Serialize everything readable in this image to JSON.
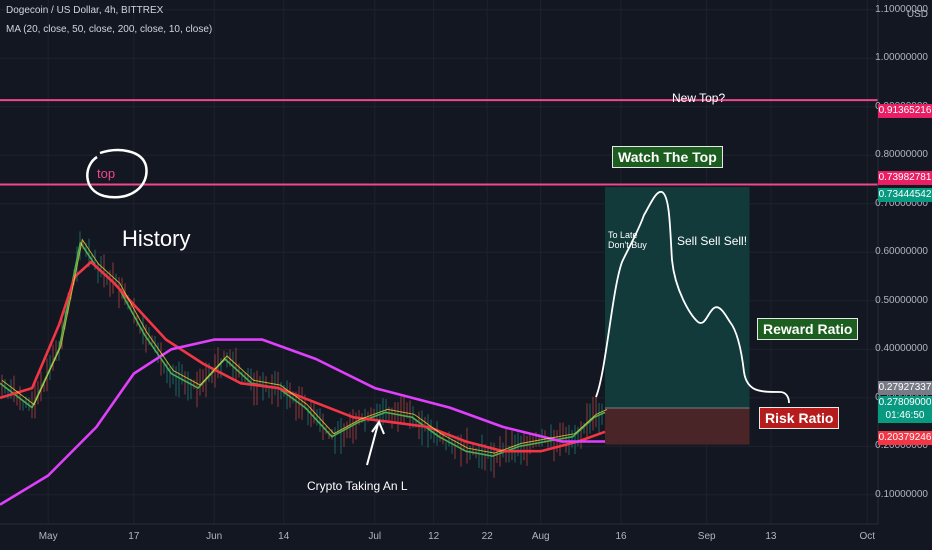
{
  "header": {
    "title": "Dogecoin / US Dollar, 4h, BITTREX",
    "ma_legend": "MA (20, close, 50, close, 200, close, 10, close)",
    "currency": "USD"
  },
  "price_axis": {
    "labels": [
      "1.10000000",
      "1.00000000",
      "0.90000000",
      "0.80000000",
      "0.70000000",
      "0.60000000",
      "0.50000000",
      "0.40000000",
      "0.30000000",
      "0.20000000",
      "0.10000000"
    ]
  },
  "price_tags": [
    {
      "value": "0.91365216",
      "color": "#e91e63"
    },
    {
      "value": "0.73982781",
      "color": "#e91e63"
    },
    {
      "value": "0.73444542",
      "color": "#089981"
    },
    {
      "value": "0.27927337",
      "color": "#787b86"
    },
    {
      "value": "0.27809000",
      "color": "#089981"
    },
    {
      "value": "01:46:50",
      "color": "#089981"
    },
    {
      "value": "0.20379246",
      "color": "#f23645"
    }
  ],
  "time_axis": {
    "labels": [
      "May",
      "17",
      "Jun",
      "14",
      "Jul",
      "12",
      "22",
      "Aug",
      "16",
      "Sep",
      "13",
      "Oct"
    ]
  },
  "annotations": {
    "top_circle": "top",
    "history": "History",
    "new_top": "New Top?",
    "watch_the_top": "Watch The Top",
    "to_late": "To Late",
    "dont_buy": "Don't Buy",
    "sell": "Sell Sell Sell!",
    "reward_ratio": "Reward Ratio",
    "risk_ratio": "Risk Ratio",
    "crypto_l": "Crypto Taking An L"
  },
  "colors": {
    "background": "#131722",
    "ma20": "#4caf50",
    "ma50": "#f23645",
    "ma200": "#e040fb",
    "ma10": "#ffeb3b",
    "hline": "#f0478d",
    "reward_zone": "#133a3b",
    "risk_zone": "#4a2527",
    "watch_box": "#1b5e20",
    "risk_box": "#b71c1c"
  },
  "chart_data": {
    "type": "line",
    "symbol": "Dogecoin / US Dollar",
    "interval": "4h",
    "exchange": "BITTREX",
    "y_unit": "USD",
    "ylim": [
      0.04,
      1.12
    ],
    "x_range": [
      "2021-04-22",
      "2021-10-03"
    ],
    "horizontal_lines": [
      0.91365216,
      0.73982781
    ],
    "position": {
      "entry": 0.279,
      "target": 0.7345,
      "stop": 0.2038,
      "start": "2021-08-13",
      "end": "2021-09-09"
    },
    "series": [
      {
        "name": "MA (20, close)",
        "x": [
          "2021-04-22",
          "2021-04-28",
          "2021-05-03",
          "2021-05-07",
          "2021-05-10",
          "2021-05-14",
          "2021-05-19",
          "2021-05-24",
          "2021-05-29",
          "2021-06-03",
          "2021-06-08",
          "2021-06-13",
          "2021-06-18",
          "2021-06-23",
          "2021-06-28",
          "2021-07-03",
          "2021-07-08",
          "2021-07-13",
          "2021-07-18",
          "2021-07-23",
          "2021-07-28",
          "2021-08-02",
          "2021-08-07",
          "2021-08-11",
          "2021-08-13"
        ],
        "values": [
          0.33,
          0.28,
          0.4,
          0.62,
          0.57,
          0.53,
          0.43,
          0.35,
          0.32,
          0.38,
          0.33,
          0.32,
          0.28,
          0.22,
          0.25,
          0.27,
          0.26,
          0.22,
          0.19,
          0.18,
          0.2,
          0.21,
          0.22,
          0.26,
          0.27
        ]
      },
      {
        "name": "MA (50, close)",
        "x": [
          "2021-04-22",
          "2021-04-28",
          "2021-05-03",
          "2021-05-06",
          "2021-05-09",
          "2021-05-13",
          "2021-05-18",
          "2021-05-23",
          "2021-05-30",
          "2021-06-06",
          "2021-06-13",
          "2021-06-20",
          "2021-06-27",
          "2021-07-04",
          "2021-07-11",
          "2021-07-18",
          "2021-07-25",
          "2021-08-01",
          "2021-08-08",
          "2021-08-13"
        ],
        "values": [
          0.3,
          0.32,
          0.45,
          0.55,
          0.58,
          0.54,
          0.48,
          0.42,
          0.37,
          0.33,
          0.32,
          0.29,
          0.26,
          0.25,
          0.24,
          0.21,
          0.19,
          0.19,
          0.21,
          0.23
        ]
      },
      {
        "name": "MA (200, close)",
        "x": [
          "2021-04-22",
          "2021-05-01",
          "2021-05-10",
          "2021-05-17",
          "2021-05-24",
          "2021-06-01",
          "2021-06-10",
          "2021-06-20",
          "2021-07-01",
          "2021-07-15",
          "2021-07-25",
          "2021-08-05",
          "2021-08-13"
        ],
        "values": [
          0.08,
          0.14,
          0.24,
          0.35,
          0.4,
          0.42,
          0.42,
          0.38,
          0.32,
          0.28,
          0.24,
          0.21,
          0.21
        ]
      }
    ]
  }
}
